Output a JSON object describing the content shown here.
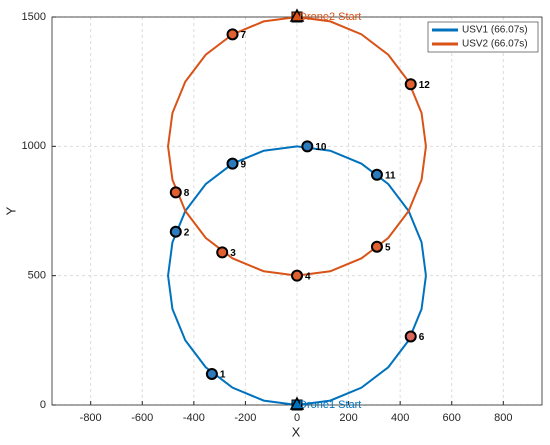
{
  "chart_data": {
    "type": "line",
    "xlabel": "X",
    "ylabel": "Y",
    "xlim": [
      -950,
      950
    ],
    "ylim": [
      0,
      1500
    ],
    "xticks": [
      -800,
      -600,
      -400,
      -200,
      0,
      200,
      400,
      600,
      800
    ],
    "yticks": [
      0,
      500,
      1000,
      1500
    ],
    "grid": true,
    "legend_position": "upper right",
    "series": [
      {
        "name": "USV1 (66.07s)",
        "color": "#0072bd",
        "x": [
          500,
          483,
          433,
          354,
          250,
          129,
          0,
          -129,
          -250,
          -354,
          -433,
          -483,
          -500,
          -483,
          -433,
          -354,
          -250,
          -129,
          0,
          129,
          250,
          354,
          433,
          483,
          500
        ],
        "values": [
          500,
          629,
          750,
          854,
          933,
          983,
          1000,
          983,
          933,
          854,
          750,
          629,
          500,
          371,
          250,
          146,
          67,
          17,
          0,
          17,
          67,
          146,
          250,
          371,
          500
        ]
      },
      {
        "name": "USV2 (66.07s)",
        "color": "#d95319",
        "x": [
          500,
          483,
          433,
          354,
          250,
          129,
          0,
          -129,
          -250,
          -354,
          -433,
          -483,
          -500,
          -483,
          -433,
          -354,
          -250,
          -129,
          0,
          129,
          250,
          354,
          433,
          483,
          500
        ],
        "values": [
          1000,
          1129,
          1250,
          1354,
          1433,
          1483,
          1500,
          1483,
          1433,
          1354,
          1250,
          1129,
          1000,
          871,
          750,
          646,
          567,
          517,
          500,
          517,
          567,
          646,
          750,
          871,
          1000
        ]
      }
    ],
    "points": [
      {
        "label": "1",
        "x": -330,
        "y": 120,
        "color": "#2b7bbd"
      },
      {
        "label": "2",
        "x": -470,
        "y": 670,
        "color": "#2b7bbd"
      },
      {
        "label": "3",
        "x": -290,
        "y": 590,
        "color": "#e06030"
      },
      {
        "label": "4",
        "x": 0,
        "y": 500,
        "color": "#e06030"
      },
      {
        "label": "5",
        "x": 310,
        "y": 612,
        "color": "#e06030"
      },
      {
        "label": "6",
        "x": 441,
        "y": 265,
        "color": "#d9675e"
      },
      {
        "label": "7",
        "x": -250,
        "y": 1433,
        "color": "#e06030"
      },
      {
        "label": "8",
        "x": -470,
        "y": 822,
        "color": "#e06030"
      },
      {
        "label": "9",
        "x": -250,
        "y": 933,
        "color": "#2b7bbd"
      },
      {
        "label": "10",
        "x": 40,
        "y": 1000,
        "color": "#2b7bbd"
      },
      {
        "label": "11",
        "x": 310,
        "y": 890,
        "color": "#2b7bbd"
      },
      {
        "label": "12",
        "x": 441,
        "y": 1240,
        "color": "#e06030"
      }
    ],
    "starts": [
      {
        "label": "Drone1 Start",
        "x": 0,
        "y": 0,
        "color": "#0072bd"
      },
      {
        "label": "Drone2 Start",
        "x": 0,
        "y": 1500,
        "color": "#d95319"
      }
    ]
  }
}
